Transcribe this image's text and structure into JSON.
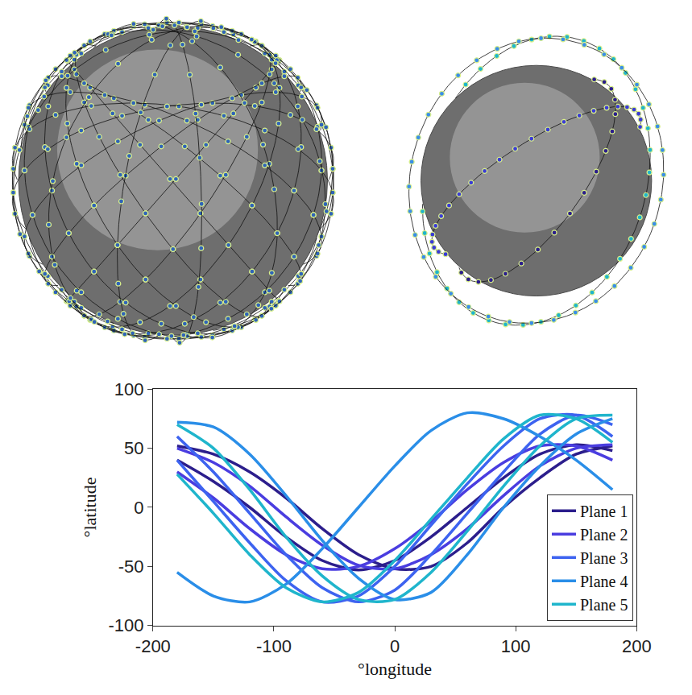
{
  "chart_data": {
    "type": "line",
    "xlabel": "°longitude",
    "ylabel": "°latitude",
    "xlim": [
      -200,
      200
    ],
    "xticks": [
      -200,
      -100,
      0,
      100,
      200
    ],
    "ylim": [
      -100,
      100
    ],
    "yticks": [
      -100,
      -50,
      0,
      50,
      100
    ],
    "grid": false,
    "legend": "lower right",
    "series": [
      {
        "name": "Plane 1",
        "color": "#2c1e8c",
        "tracks": [
          {
            "x": [
              -180,
              -150,
              -120,
              -90,
              -60,
              -30,
              0,
              30,
              60,
              90,
              120,
              150,
              180
            ],
            "y": [
              52,
              45,
              30,
              8,
              -18,
              -40,
              -52,
              -50,
              -30,
              0,
              25,
              45,
              52
            ]
          },
          {
            "x": [
              -180,
              -150,
              -120,
              -90,
              -60,
              -30,
              0,
              30,
              60,
              90,
              120,
              150,
              180
            ],
            "y": [
              40,
              22,
              0,
              -25,
              -45,
              -53,
              -45,
              -25,
              0,
              25,
              45,
              53,
              48
            ]
          }
        ]
      },
      {
        "name": "Plane 2",
        "color": "#4a3de0",
        "tracks": [
          {
            "x": [
              -180,
              -150,
              -120,
              -90,
              -60,
              -30,
              0,
              30,
              60,
              90,
              120,
              150,
              180
            ],
            "y": [
              50,
              38,
              18,
              -8,
              -32,
              -49,
              -52,
              -40,
              -18,
              10,
              35,
              50,
              53
            ]
          },
          {
            "x": [
              -180,
              -150,
              -120,
              -90,
              -60,
              -30,
              0,
              30,
              60,
              90,
              120,
              150,
              180
            ],
            "y": [
              30,
              8,
              -18,
              -40,
              -52,
              -50,
              -35,
              -12,
              15,
              38,
              52,
              52,
              40
            ]
          }
        ]
      },
      {
        "name": "Plane 3",
        "color": "#3d63f0",
        "tracks": [
          {
            "x": [
              -180,
              -150,
              -120,
              -90,
              -60,
              -30,
              0,
              30,
              60,
              90,
              120,
              150,
              180
            ],
            "y": [
              60,
              30,
              -5,
              -40,
              -68,
              -80,
              -70,
              -40,
              -5,
              30,
              62,
              78,
              70
            ]
          },
          {
            "x": [
              -180,
              -150,
              -120,
              -90,
              -60,
              -30,
              0,
              30,
              60,
              90,
              120,
              150,
              180
            ],
            "y": [
              40,
              5,
              -30,
              -62,
              -80,
              -75,
              -50,
              -15,
              20,
              52,
              75,
              78,
              60
            ]
          }
        ]
      },
      {
        "name": "Plane 4",
        "color": "#2a8ee8",
        "tracks": [
          {
            "x": [
              -180,
              -150,
              -120,
              -90,
              -60,
              -30,
              0,
              30,
              60,
              90,
              120,
              150,
              180
            ],
            "y": [
              72,
              68,
              45,
              10,
              -28,
              -60,
              -78,
              -72,
              -40,
              0,
              35,
              62,
              75
            ]
          },
          {
            "x": [
              -180,
              -150,
              -120,
              -90,
              -60,
              -30,
              0,
              30,
              60,
              90,
              120,
              150,
              180
            ],
            "y": [
              -55,
              -75,
              -80,
              -65,
              -35,
              0,
              35,
              65,
              80,
              75,
              60,
              40,
              15
            ]
          }
        ]
      },
      {
        "name": "Plane 5",
        "color": "#1fb5cc",
        "tracks": [
          {
            "x": [
              -180,
              -150,
              -120,
              -90,
              -60,
              -30,
              0,
              30,
              60,
              90,
              120,
              150,
              180
            ],
            "y": [
              70,
              50,
              15,
              -25,
              -58,
              -78,
              -78,
              -55,
              -20,
              18,
              52,
              75,
              78
            ]
          },
          {
            "x": [
              -180,
              -150,
              -120,
              -90,
              -60,
              -30,
              0,
              30,
              60,
              90,
              120,
              150,
              180
            ],
            "y": [
              28,
              -5,
              -40,
              -68,
              -80,
              -72,
              -45,
              -10,
              25,
              58,
              78,
              75,
              55
            ]
          }
        ]
      }
    ]
  },
  "globes": [
    {
      "view": {
        "lat": 25,
        "lon": 20
      },
      "orbits": [
        {
          "inclination": 53,
          "node": 0,
          "radius": 1.05,
          "satellites": 22,
          "color": "#2f64b8"
        },
        {
          "inclination": 53,
          "node": 20,
          "radius": 1.05,
          "satellites": 22,
          "color": "#2f64b8"
        },
        {
          "inclination": 53,
          "node": 40,
          "radius": 1.05,
          "satellites": 22,
          "color": "#2f64b8"
        },
        {
          "inclination": 53,
          "node": 60,
          "radius": 1.05,
          "satellites": 22,
          "color": "#2f64b8"
        },
        {
          "inclination": 53,
          "node": 80,
          "radius": 1.05,
          "satellites": 22,
          "color": "#2f64b8"
        },
        {
          "inclination": 53,
          "node": 100,
          "radius": 1.05,
          "satellites": 22,
          "color": "#2f64b8"
        },
        {
          "inclination": 53,
          "node": 120,
          "radius": 1.05,
          "satellites": 22,
          "color": "#2f64b8"
        },
        {
          "inclination": 53,
          "node": 140,
          "radius": 1.05,
          "satellites": 22,
          "color": "#2f64b8"
        },
        {
          "inclination": 53,
          "node": 160,
          "radius": 1.05,
          "satellites": 22,
          "color": "#2f64b8"
        },
        {
          "inclination": 53,
          "node": 180,
          "radius": 1.05,
          "satellites": 22,
          "color": "#2f64b8"
        },
        {
          "inclination": 53,
          "node": 200,
          "radius": 1.05,
          "satellites": 22,
          "color": "#2f64b8"
        },
        {
          "inclination": 53,
          "node": 220,
          "radius": 1.05,
          "satellites": 22,
          "color": "#2f64b8"
        },
        {
          "inclination": 53,
          "node": 240,
          "radius": 1.05,
          "satellites": 22,
          "color": "#2f64b8"
        },
        {
          "inclination": 53,
          "node": 260,
          "radius": 1.05,
          "satellites": 22,
          "color": "#2f64b8"
        },
        {
          "inclination": 53,
          "node": 280,
          "radius": 1.05,
          "satellites": 22,
          "color": "#2f64b8"
        },
        {
          "inclination": 53,
          "node": 300,
          "radius": 1.05,
          "satellites": 22,
          "color": "#2f64b8"
        },
        {
          "inclination": 53,
          "node": 320,
          "radius": 1.05,
          "satellites": 22,
          "color": "#2f64b8"
        },
        {
          "inclination": 53,
          "node": 340,
          "radius": 1.05,
          "satellites": 22,
          "color": "#2f64b8"
        },
        {
          "inclination": 88,
          "node": 0,
          "radius": 1.05,
          "satellites": 22,
          "color": "#2f64b8"
        },
        {
          "inclination": 88,
          "node": 30,
          "radius": 1.05,
          "satellites": 22,
          "color": "#2f64b8"
        },
        {
          "inclination": 88,
          "node": 60,
          "radius": 1.05,
          "satellites": 22,
          "color": "#2f64b8"
        },
        {
          "inclination": 88,
          "node": 90,
          "radius": 1.05,
          "satellites": 22,
          "color": "#2f64b8"
        },
        {
          "inclination": 88,
          "node": 120,
          "radius": 1.05,
          "satellites": 22,
          "color": "#2f64b8"
        },
        {
          "inclination": 88,
          "node": 150,
          "radius": 1.05,
          "satellites": 22,
          "color": "#2f64b8"
        }
      ]
    },
    {
      "view": {
        "lat": -5,
        "lon": 120
      },
      "orbits": [
        {
          "inclination": 35,
          "node": 95,
          "radius": 1.06,
          "satellites": 40,
          "color": "#3b3bd6"
        },
        {
          "inclination": 60,
          "node": 150,
          "radius": 1.04,
          "satellites": 30,
          "color": "#2c1e8c"
        },
        {
          "inclination": 82,
          "node": 170,
          "radius": 1.28,
          "satellites": 40,
          "color": "#1fb5cc"
        },
        {
          "inclination": 86,
          "node": 182,
          "radius": 1.25,
          "satellites": 36,
          "color": "#3a8ee8"
        }
      ]
    }
  ]
}
